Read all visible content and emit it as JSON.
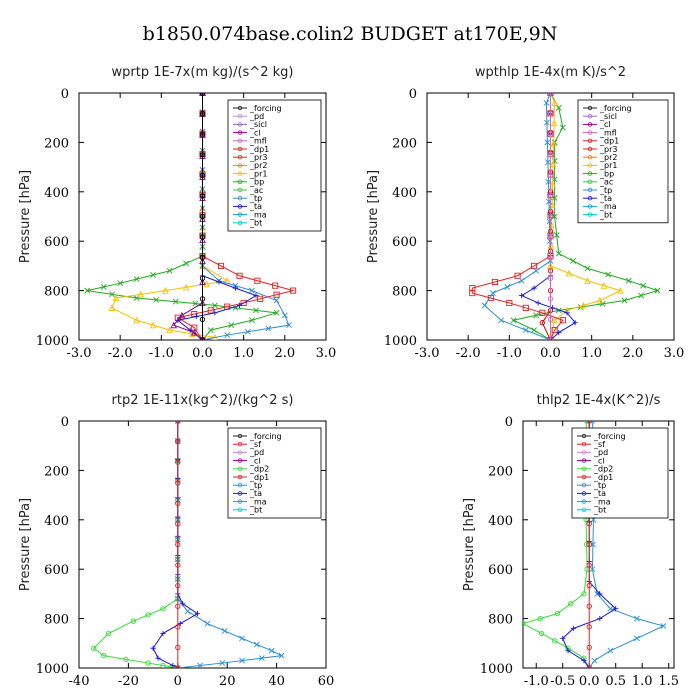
{
  "title": "b1850.074base.colin2  BUDGET at170E,9N",
  "chart_data": [
    {
      "type": "line",
      "title": "wprtp  1E-7x(m kg)/(s^2 kg)",
      "ylabel": "Pressure [hPa]",
      "xlim": [
        -3.0,
        3.0
      ],
      "ylim": [
        1000,
        0
      ],
      "xticks": [
        "-3.0",
        "-2.0",
        "-1.0",
        "0.0",
        "1.0",
        "2.0",
        "3.0"
      ],
      "xtick_values": [
        -3,
        -2,
        -1,
        0,
        1,
        2,
        3
      ],
      "yticks": [
        "0",
        "200",
        "400",
        "600",
        "800",
        "1000"
      ],
      "ytick_values": [
        0,
        200,
        400,
        600,
        800,
        1000
      ],
      "legend": [
        "_forcing",
        "_pd",
        "_sicl",
        "_cl",
        "_mfl",
        "_dp1",
        "_pr3",
        "_pr2",
        "_pr1",
        "_bp",
        "_ac",
        "_tp",
        "_ta",
        "_ma",
        "_bt"
      ],
      "series": [
        {
          "name": "_bp",
          "color": "#22aa22",
          "marker": "x",
          "points": [
            [
              0,
              0
            ],
            [
              0,
              660
            ],
            [
              -0.8,
              720
            ],
            [
              -2.0,
              770
            ],
            [
              -2.8,
              800
            ],
            [
              -1.6,
              830
            ],
            [
              0.3,
              860
            ],
            [
              1.8,
              890
            ],
            [
              1.2,
              920
            ],
            [
              0.2,
              960
            ],
            [
              0,
              1000
            ]
          ]
        },
        {
          "name": "_pr1",
          "color": "#f5c000",
          "marker": "tri",
          "points": [
            [
              0,
              0
            ],
            [
              0,
              700
            ],
            [
              0.6,
              760
            ],
            [
              -0.9,
              800
            ],
            [
              -2.1,
              830
            ],
            [
              -2.2,
              870
            ],
            [
              -1.6,
              920
            ],
            [
              -0.8,
              960
            ],
            [
              0.3,
              990
            ],
            [
              0,
              1000
            ]
          ]
        },
        {
          "name": "_ac",
          "color": "#2d8fd0",
          "marker": "x",
          "points": [
            [
              0,
              0
            ],
            [
              0,
              700
            ],
            [
              0.4,
              760
            ],
            [
              1.2,
              800
            ],
            [
              1.8,
              840
            ],
            [
              2.0,
              900
            ],
            [
              2.1,
              940
            ],
            [
              0.6,
              980
            ],
            [
              0,
              1000
            ]
          ]
        },
        {
          "name": "_pr3",
          "color": "#e02020",
          "marker": "sq",
          "points": [
            [
              0,
              0
            ],
            [
              0,
              660
            ],
            [
              0.9,
              740
            ],
            [
              2.2,
              800
            ],
            [
              1.0,
              850
            ],
            [
              0.2,
              880
            ],
            [
              -0.6,
              910
            ],
            [
              -0.2,
              950
            ],
            [
              0,
              1000
            ]
          ]
        },
        {
          "name": "_ta",
          "color": "#1a1acd",
          "marker": "plus",
          "points": [
            [
              0,
              0
            ],
            [
              0,
              740
            ],
            [
              0.8,
              790
            ],
            [
              1.3,
              820
            ],
            [
              0.9,
              860
            ],
            [
              0.3,
              890
            ],
            [
              -0.6,
              920
            ],
            [
              -0.3,
              960
            ],
            [
              0,
              1000
            ]
          ]
        },
        {
          "name": "_cl",
          "color": "#880088",
          "marker": "tri",
          "points": [
            [
              0,
              0
            ],
            [
              0,
              850
            ],
            [
              -0.5,
              900
            ],
            [
              -0.7,
              940
            ],
            [
              -0.2,
              970
            ],
            [
              0,
              1000
            ]
          ]
        },
        {
          "name": "_forcing",
          "color": "#000000",
          "marker": "circle",
          "points": [
            [
              0,
              0
            ],
            [
              0,
              1000
            ]
          ]
        }
      ]
    },
    {
      "type": "line",
      "title": "wpthlp  1E-4x(m K)/s^2",
      "ylabel": "Pressure [hPa]",
      "xlim": [
        -3.0,
        3.0
      ],
      "ylim": [
        1000,
        0
      ],
      "xticks": [
        "-3.0",
        "-2.0",
        "-1.0",
        "0.0",
        "1.0",
        "2.0",
        "3.0"
      ],
      "xtick_values": [
        -3,
        -2,
        -1,
        0,
        1,
        2,
        3
      ],
      "yticks": [
        "0",
        "200",
        "400",
        "600",
        "800",
        "1000"
      ],
      "ytick_values": [
        0,
        200,
        400,
        600,
        800,
        1000
      ],
      "legend": [
        "_forcing",
        "_sicl",
        "_cl",
        "_mfl",
        "_dp1",
        "_pr3",
        "_pr2",
        "_pr1",
        "_bp",
        "_ac",
        "_tp",
        "_ta",
        "_ma",
        "_bt"
      ],
      "series": [
        {
          "name": "_bp",
          "color": "#22aa22",
          "marker": "x",
          "points": [
            [
              0,
              0
            ],
            [
              0.2,
              60
            ],
            [
              0.3,
              140
            ],
            [
              0.1,
              200
            ],
            [
              0.1,
              500
            ],
            [
              0.2,
              650
            ],
            [
              0.9,
              710
            ],
            [
              1.9,
              760
            ],
            [
              2.6,
              800
            ],
            [
              1.8,
              840
            ],
            [
              0.2,
              880
            ],
            [
              -0.9,
              920
            ],
            [
              -0.4,
              960
            ],
            [
              0,
              1000
            ]
          ]
        },
        {
          "name": "_pr1",
          "color": "#f5c000",
          "marker": "tri",
          "points": [
            [
              0,
              0
            ],
            [
              0.1,
              40
            ],
            [
              0,
              700
            ],
            [
              0.9,
              760
            ],
            [
              1.7,
              800
            ],
            [
              1.2,
              840
            ],
            [
              0.4,
              880
            ],
            [
              0.1,
              920
            ],
            [
              0,
              1000
            ]
          ]
        },
        {
          "name": "_pr3",
          "color": "#e02020",
          "marker": "sq",
          "points": [
            [
              0,
              0
            ],
            [
              0,
              660
            ],
            [
              -0.8,
              740
            ],
            [
              -1.9,
              790
            ],
            [
              -1.9,
              810
            ],
            [
              -1.0,
              850
            ],
            [
              -0.2,
              890
            ],
            [
              0.3,
              920
            ],
            [
              0.1,
              960
            ],
            [
              0,
              1000
            ]
          ]
        },
        {
          "name": "_ac",
          "color": "#2d8fd0",
          "marker": "x",
          "points": [
            [
              0,
              0
            ],
            [
              -0.1,
              40
            ],
            [
              0,
              680
            ],
            [
              -0.7,
              760
            ],
            [
              -1.4,
              810
            ],
            [
              -1.6,
              860
            ],
            [
              -1.2,
              920
            ],
            [
              -0.6,
              960
            ],
            [
              0,
              1000
            ]
          ]
        },
        {
          "name": "_ta",
          "color": "#1a1acd",
          "marker": "plus",
          "points": [
            [
              0,
              0
            ],
            [
              0,
              740
            ],
            [
              -0.4,
              790
            ],
            [
              -0.7,
              820
            ],
            [
              -0.3,
              850
            ],
            [
              0.4,
              890
            ],
            [
              0.6,
              930
            ],
            [
              0.2,
              970
            ],
            [
              0,
              1000
            ]
          ]
        },
        {
          "name": "_dp1",
          "color": "#cc0000",
          "marker": "circle",
          "points": [
            [
              0,
              0
            ],
            [
              0,
              880
            ],
            [
              -0.2,
              930
            ],
            [
              0,
              1000
            ]
          ]
        },
        {
          "name": "_mfl",
          "color": "#cc66cc",
          "marker": "circle",
          "points": [
            [
              0,
              0
            ],
            [
              0,
              1000
            ]
          ]
        }
      ]
    },
    {
      "type": "line",
      "title": "rtp2  1E-11x(kg^2)/(kg^2 s)",
      "ylabel": "Pressure [hPa]",
      "xlim": [
        -40,
        60
      ],
      "ylim": [
        1000,
        0
      ],
      "xticks": [
        "-40",
        "-20",
        "0",
        "20",
        "40",
        "60"
      ],
      "xtick_values": [
        -40,
        -20,
        0,
        20,
        40,
        60
      ],
      "yticks": [
        "0",
        "200",
        "400",
        "600",
        "800",
        "1000"
      ],
      "ytick_values": [
        0,
        200,
        400,
        600,
        800,
        1000
      ],
      "legend": [
        "_forcing",
        "_sf",
        "_pd",
        "_cl",
        "_dp2",
        "_dp1",
        "_tp",
        "_ta",
        "_ma",
        "_bt"
      ],
      "series": [
        {
          "name": "_dp1",
          "color": "#33dd33",
          "marker": "circle",
          "points": [
            [
              0,
              0
            ],
            [
              0,
              720
            ],
            [
              -6,
              760
            ],
            [
              -18,
              810
            ],
            [
              -28,
              860
            ],
            [
              -34,
              920
            ],
            [
              -30,
              950
            ],
            [
              -12,
              980
            ],
            [
              0,
              1000
            ]
          ]
        },
        {
          "name": "_tp",
          "color": "#2d8fd0",
          "marker": "x",
          "points": [
            [
              0,
              0
            ],
            [
              0,
              720
            ],
            [
              4,
              770
            ],
            [
              12,
              820
            ],
            [
              26,
              880
            ],
            [
              38,
              930
            ],
            [
              42,
              950
            ],
            [
              18,
              980
            ],
            [
              0,
              1000
            ]
          ]
        },
        {
          "name": "_ta",
          "color": "#1a1acd",
          "marker": "plus",
          "points": [
            [
              0,
              0
            ],
            [
              0,
              700
            ],
            [
              2,
              740
            ],
            [
              8,
              780
            ],
            [
              1,
              820
            ],
            [
              -6,
              860
            ],
            [
              -10,
              920
            ],
            [
              -8,
              960
            ],
            [
              -2,
              990
            ],
            [
              0,
              1000
            ]
          ]
        },
        {
          "name": "_forcing",
          "color": "#dd2222",
          "marker": "circle",
          "points": [
            [
              0,
              0
            ],
            [
              0,
              1000
            ]
          ]
        }
      ]
    },
    {
      "type": "line",
      "title": "thlp2  1E-4x(K^2)/s",
      "ylabel": "Pressure [hPa]",
      "xlim": [
        -1.25,
        1.6
      ],
      "ylim": [
        1000,
        0
      ],
      "xticks": [
        "-1.0",
        "-0.5",
        "0.0",
        "0.5",
        "1.0",
        "1.5"
      ],
      "xtick_values": [
        -1.0,
        -0.5,
        0.0,
        0.5,
        1.0,
        1.5
      ],
      "yticks": [
        "0",
        "200",
        "400",
        "600",
        "800",
        "1000"
      ],
      "ytick_values": [
        0,
        200,
        400,
        600,
        800,
        1000
      ],
      "legend": [
        "_forcing",
        "_sf",
        "_pd",
        "_cl",
        "_dp2",
        "_dp1",
        "_tp",
        "_ta",
        "_ma",
        "_bt"
      ],
      "series": [
        {
          "name": "_dp1",
          "color": "#33dd33",
          "marker": "circle",
          "points": [
            [
              -0.05,
              0
            ],
            [
              -0.08,
              100
            ],
            [
              -0.02,
              200
            ],
            [
              -0.06,
              400
            ],
            [
              -0.04,
              600
            ],
            [
              -0.1,
              700
            ],
            [
              -0.6,
              780
            ],
            [
              -1.25,
              820
            ],
            [
              -0.9,
              860
            ],
            [
              -0.4,
              920
            ],
            [
              -0.1,
              960
            ],
            [
              0,
              1000
            ]
          ]
        },
        {
          "name": "_tp",
          "color": "#2d8fd0",
          "marker": "x",
          "points": [
            [
              0.05,
              0
            ],
            [
              0.12,
              100
            ],
            [
              0.1,
              200
            ],
            [
              0.08,
              400
            ],
            [
              0.06,
              600
            ],
            [
              0.15,
              700
            ],
            [
              0.4,
              760
            ],
            [
              0.9,
              800
            ],
            [
              1.4,
              830
            ],
            [
              0.9,
              880
            ],
            [
              0.4,
              930
            ],
            [
              0.1,
              970
            ],
            [
              0,
              1000
            ]
          ]
        },
        {
          "name": "_ta",
          "color": "#1a1acd",
          "marker": "plus",
          "points": [
            [
              0,
              0
            ],
            [
              0,
              650
            ],
            [
              0.2,
              700
            ],
            [
              0.5,
              760
            ],
            [
              0.2,
              800
            ],
            [
              -0.3,
              840
            ],
            [
              -0.5,
              880
            ],
            [
              -0.4,
              930
            ],
            [
              -0.1,
              970
            ],
            [
              0,
              1000
            ]
          ]
        },
        {
          "name": "_forcing",
          "color": "#dd2222",
          "marker": "circle",
          "points": [
            [
              0,
              0
            ],
            [
              0,
              1000
            ]
          ]
        }
      ]
    }
  ]
}
